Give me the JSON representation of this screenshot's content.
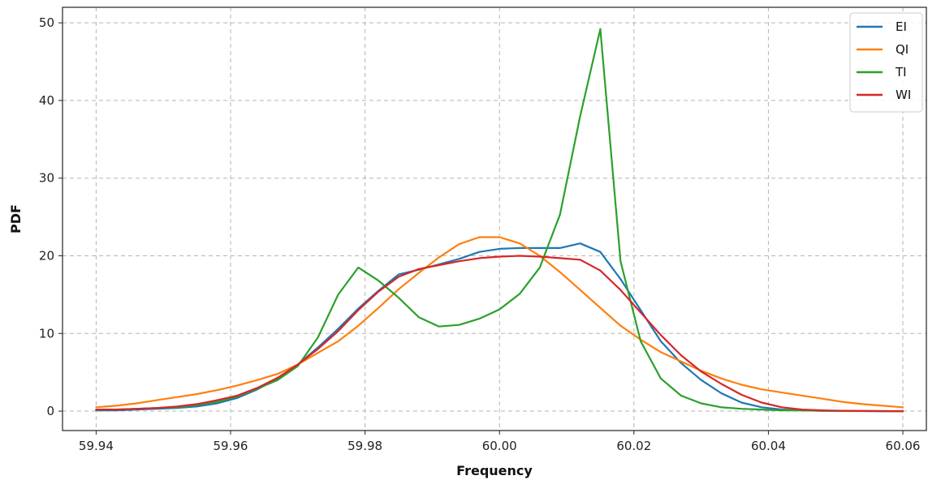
{
  "chart_data": {
    "type": "line",
    "title": "",
    "xlabel": "Frequency",
    "ylabel": "PDF",
    "xlim": [
      59.935,
      60.0635
    ],
    "ylim": [
      -2.5,
      52
    ],
    "xticks": [
      59.94,
      59.96,
      59.98,
      60.0,
      60.02,
      60.04,
      60.06
    ],
    "xtick_labels": [
      "59.94",
      "59.96",
      "59.98",
      "60.00",
      "60.02",
      "60.04",
      "60.06"
    ],
    "yticks": [
      0,
      10,
      20,
      30,
      40,
      50
    ],
    "ytick_labels": [
      "0",
      "10",
      "20",
      "30",
      "40",
      "50"
    ],
    "grid": true,
    "legend_position": "top-right",
    "series": [
      {
        "name": "EI",
        "color": "#1f77b4",
        "x": [
          59.94,
          59.943,
          59.946,
          59.949,
          59.952,
          59.955,
          59.958,
          59.961,
          59.964,
          59.967,
          59.97,
          59.973,
          59.976,
          59.979,
          59.982,
          59.985,
          59.988,
          59.991,
          59.994,
          59.997,
          60.0,
          60.003,
          60.006,
          60.009,
          60.012,
          60.015,
          60.018,
          60.021,
          60.024,
          60.027,
          60.03,
          60.033,
          60.036,
          60.039,
          60.042,
          60.045,
          60.048,
          60.051,
          60.054,
          60.057,
          60.06
        ],
        "values": [
          0.1,
          0.1,
          0.2,
          0.3,
          0.4,
          0.6,
          1.0,
          1.7,
          2.8,
          4.2,
          6.0,
          8.2,
          10.6,
          13.2,
          15.5,
          17.6,
          18.2,
          18.9,
          19.6,
          20.5,
          20.9,
          21.0,
          21.0,
          21.0,
          21.6,
          20.5,
          17.0,
          13.0,
          9.0,
          6.2,
          4.0,
          2.3,
          1.1,
          0.5,
          0.2,
          0.1,
          0.05,
          0.02,
          0.01,
          0.0,
          0.0
        ]
      },
      {
        "name": "QI",
        "color": "#ff7f0e",
        "x": [
          59.94,
          59.943,
          59.946,
          59.949,
          59.952,
          59.955,
          59.958,
          59.961,
          59.964,
          59.967,
          59.97,
          59.973,
          59.976,
          59.979,
          59.982,
          59.985,
          59.988,
          59.991,
          59.994,
          59.997,
          60.0,
          60.003,
          60.006,
          60.009,
          60.012,
          60.015,
          60.018,
          60.021,
          60.024,
          60.027,
          60.03,
          60.033,
          60.036,
          60.039,
          60.042,
          60.045,
          60.048,
          60.051,
          60.054,
          60.057,
          60.06
        ],
        "values": [
          0.5,
          0.7,
          1.0,
          1.4,
          1.8,
          2.2,
          2.7,
          3.3,
          4.0,
          4.8,
          6.0,
          7.5,
          9.0,
          11.0,
          13.3,
          15.7,
          17.8,
          19.8,
          21.5,
          22.4,
          22.4,
          21.6,
          20.0,
          17.9,
          15.6,
          13.3,
          11.0,
          9.2,
          7.6,
          6.4,
          5.2,
          4.2,
          3.4,
          2.8,
          2.4,
          2.0,
          1.6,
          1.2,
          0.9,
          0.7,
          0.5
        ]
      },
      {
        "name": "TI",
        "color": "#2ca02c",
        "x": [
          59.94,
          59.943,
          59.946,
          59.949,
          59.952,
          59.955,
          59.958,
          59.961,
          59.964,
          59.967,
          59.97,
          59.973,
          59.976,
          59.979,
          59.982,
          59.985,
          59.988,
          59.991,
          59.994,
          59.997,
          60.0,
          60.003,
          60.006,
          60.009,
          60.012,
          60.015,
          60.018,
          60.021,
          60.024,
          60.027,
          60.03,
          60.033,
          60.036,
          60.039,
          60.042,
          60.045,
          60.048,
          60.051,
          60.054,
          60.057,
          60.06
        ],
        "values": [
          0.2,
          0.2,
          0.3,
          0.4,
          0.5,
          0.8,
          1.2,
          1.9,
          2.9,
          4.0,
          5.8,
          9.5,
          15.0,
          18.5,
          16.8,
          14.6,
          12.1,
          10.9,
          11.1,
          11.9,
          13.1,
          15.1,
          18.5,
          25.3,
          38.0,
          49.2,
          19.3,
          9.0,
          4.2,
          2.0,
          1.0,
          0.5,
          0.3,
          0.2,
          0.1,
          0.1,
          0.05,
          0.03,
          0.02,
          0.01,
          0.0
        ]
      },
      {
        "name": "WI",
        "color": "#d62728",
        "x": [
          59.94,
          59.943,
          59.946,
          59.949,
          59.952,
          59.955,
          59.958,
          59.961,
          59.964,
          59.967,
          59.97,
          59.973,
          59.976,
          59.979,
          59.982,
          59.985,
          59.988,
          59.991,
          59.994,
          59.997,
          60.0,
          60.003,
          60.006,
          60.009,
          60.012,
          60.015,
          60.018,
          60.021,
          60.024,
          60.027,
          60.03,
          60.033,
          60.036,
          60.039,
          60.042,
          60.045,
          60.048,
          60.051,
          60.054,
          60.057,
          60.06
        ],
        "values": [
          0.2,
          0.2,
          0.3,
          0.4,
          0.6,
          0.9,
          1.4,
          2.0,
          3.0,
          4.3,
          6.0,
          8.0,
          10.3,
          13.0,
          15.4,
          17.3,
          18.3,
          18.8,
          19.3,
          19.7,
          19.9,
          20.0,
          19.9,
          19.7,
          19.5,
          18.1,
          15.6,
          12.7,
          9.8,
          7.2,
          5.1,
          3.5,
          2.1,
          1.1,
          0.5,
          0.2,
          0.1,
          0.05,
          0.02,
          0.01,
          0.0
        ]
      }
    ]
  }
}
